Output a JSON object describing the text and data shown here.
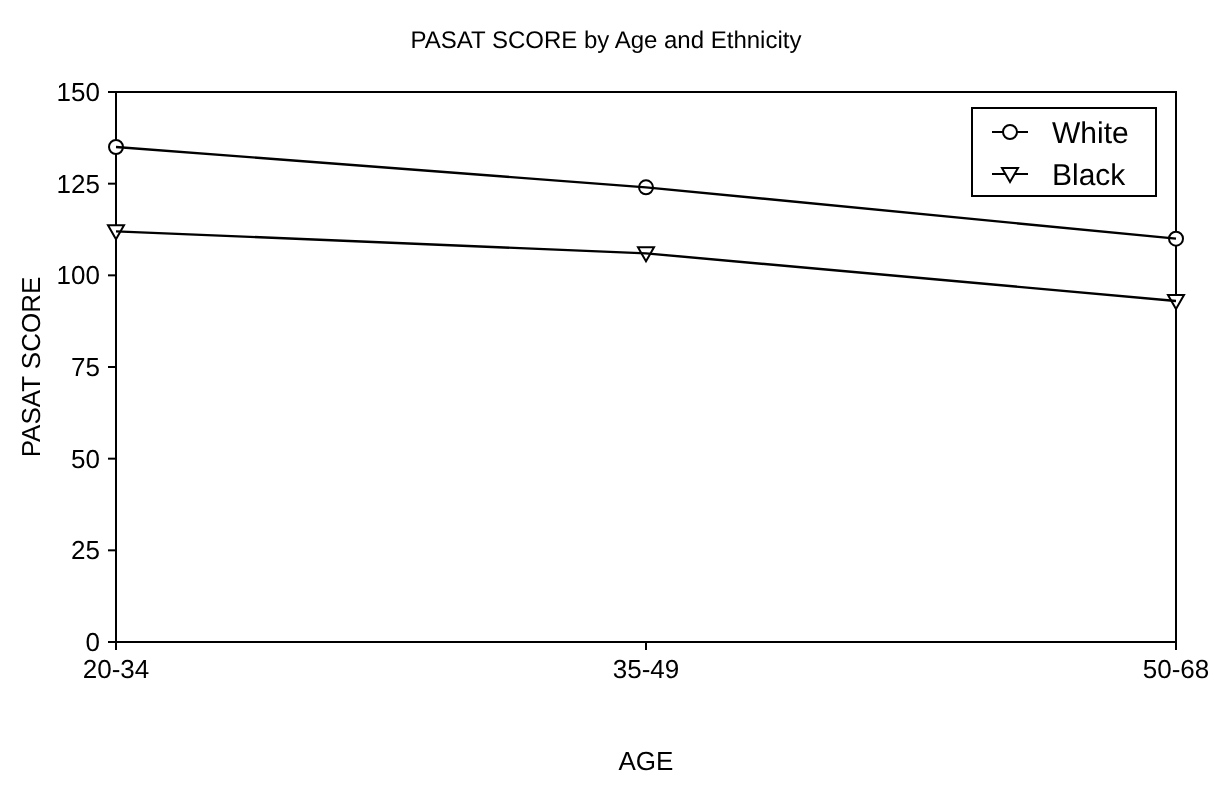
{
  "chart_data": {
    "type": "line",
    "title": "PASAT SCORE by Age and Ethnicity",
    "xlabel": "AGE",
    "ylabel": "PASAT SCORE",
    "categories": [
      "20-34",
      "35-49",
      "50-68"
    ],
    "series": [
      {
        "name": "White",
        "color": "#000000",
        "values": [
          135,
          124,
          110
        ],
        "marker": "circle"
      },
      {
        "name": "Black",
        "color": "#000000",
        "values": [
          112,
          106,
          93
        ],
        "marker": "triangle"
      }
    ],
    "ylim": [
      0,
      150
    ],
    "yticks": [
      0,
      25,
      50,
      75,
      100,
      125,
      150
    ],
    "grid": false,
    "legend": "top right",
    "line_style": "solid"
  }
}
